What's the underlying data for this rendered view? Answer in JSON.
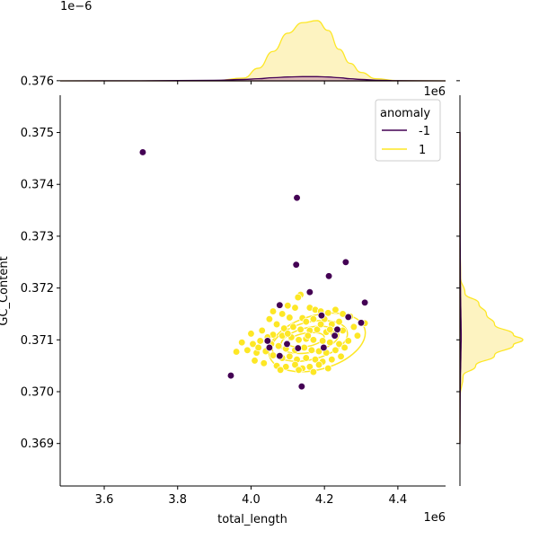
{
  "chart_data": {
    "type": "scatter",
    "xlabel": "total_length",
    "ylabel": "GC_Content",
    "x_offset_label": "1e6",
    "y_offset_label": "1e6",
    "top_marginal_offset_label": "1e−6",
    "xlim": [
      3.48,
      4.53
    ],
    "ylim": [
      0.36818,
      0.37572
    ],
    "x_ticks": [
      "3.6",
      "3.8",
      "4.0",
      "4.2",
      "4.4"
    ],
    "y_ticks": [
      "0.369",
      "0.370",
      "0.371",
      "0.372",
      "0.373",
      "0.374",
      "0.375",
      "0.376"
    ],
    "legend": {
      "title": "anomaly",
      "placement": "upper right"
    },
    "colors": {
      "anomaly_-1": "#440154",
      "normal_1": "#fde725",
      "fill_-1": "#dcb8b6",
      "fill_1": "#fdf3c1"
    },
    "series": [
      {
        "name": "-1",
        "points": [
          [
            3.705,
            0.37462
          ],
          [
            4.125,
            0.37374
          ],
          [
            4.123,
            0.37245
          ],
          [
            4.258,
            0.3725
          ],
          [
            4.212,
            0.37223
          ],
          [
            4.16,
            0.37192
          ],
          [
            4.31,
            0.37172
          ],
          [
            4.078,
            0.37167
          ],
          [
            4.192,
            0.37147
          ],
          [
            4.265,
            0.37144
          ],
          [
            4.3,
            0.37133
          ],
          [
            4.235,
            0.3712
          ],
          [
            4.045,
            0.37098
          ],
          [
            4.098,
            0.37092
          ],
          [
            4.198,
            0.37085
          ],
          [
            4.05,
            0.37085
          ],
          [
            4.128,
            0.37084
          ],
          [
            4.078,
            0.37069
          ],
          [
            3.945,
            0.37031
          ],
          [
            4.138,
            0.3701
          ],
          [
            4.228,
            0.37108
          ]
        ]
      },
      {
        "name": "1",
        "points": [
          [
            4.135,
            0.37187
          ],
          [
            4.128,
            0.37182
          ],
          [
            4.1,
            0.37166
          ],
          [
            4.12,
            0.37162
          ],
          [
            4.16,
            0.37162
          ],
          [
            4.175,
            0.37158
          ],
          [
            4.19,
            0.37155
          ],
          [
            4.21,
            0.37152
          ],
          [
            4.23,
            0.37158
          ],
          [
            4.25,
            0.3715
          ],
          [
            4.27,
            0.37145
          ],
          [
            4.06,
            0.37155
          ],
          [
            4.085,
            0.3715
          ],
          [
            4.105,
            0.37143
          ],
          [
            4.14,
            0.37142
          ],
          [
            4.15,
            0.37135
          ],
          [
            4.17,
            0.3714
          ],
          [
            4.2,
            0.3714
          ],
          [
            4.22,
            0.3713
          ],
          [
            4.24,
            0.37135
          ],
          [
            4.05,
            0.3714
          ],
          [
            4.07,
            0.3713
          ],
          [
            4.09,
            0.37122
          ],
          [
            4.115,
            0.37125
          ],
          [
            4.135,
            0.3712
          ],
          [
            4.16,
            0.37118
          ],
          [
            4.18,
            0.3712
          ],
          [
            4.205,
            0.37115
          ],
          [
            4.225,
            0.37112
          ],
          [
            4.25,
            0.37118
          ],
          [
            4.28,
            0.37125
          ],
          [
            4.0,
            0.37112
          ],
          [
            4.03,
            0.37118
          ],
          [
            4.06,
            0.3711
          ],
          [
            4.085,
            0.37108
          ],
          [
            4.11,
            0.37105
          ],
          [
            4.13,
            0.371
          ],
          [
            4.15,
            0.37102
          ],
          [
            4.17,
            0.371
          ],
          [
            4.195,
            0.37098
          ],
          [
            4.215,
            0.37095
          ],
          [
            4.24,
            0.37092
          ],
          [
            4.265,
            0.37098
          ],
          [
            4.29,
            0.37108
          ],
          [
            3.975,
            0.37095
          ],
          [
            4.005,
            0.37092
          ],
          [
            4.025,
            0.37098
          ],
          [
            4.055,
            0.37092
          ],
          [
            4.075,
            0.37088
          ],
          [
            4.095,
            0.37083
          ],
          [
            4.12,
            0.3708
          ],
          [
            4.145,
            0.37085
          ],
          [
            4.165,
            0.3708
          ],
          [
            4.185,
            0.37078
          ],
          [
            4.205,
            0.37075
          ],
          [
            4.23,
            0.3708
          ],
          [
            4.255,
            0.37085
          ],
          [
            3.99,
            0.3708
          ],
          [
            4.015,
            0.37075
          ],
          [
            4.04,
            0.37078
          ],
          [
            4.06,
            0.3707
          ],
          [
            4.085,
            0.37065
          ],
          [
            4.105,
            0.37068
          ],
          [
            4.125,
            0.37062
          ],
          [
            4.15,
            0.37065
          ],
          [
            4.175,
            0.37062
          ],
          [
            4.195,
            0.37058
          ],
          [
            4.22,
            0.37062
          ],
          [
            4.245,
            0.37068
          ],
          [
            3.96,
            0.37077
          ],
          [
            4.01,
            0.3706
          ],
          [
            4.035,
            0.37055
          ],
          [
            4.07,
            0.3705
          ],
          [
            4.095,
            0.37048
          ],
          [
            4.12,
            0.37052
          ],
          [
            4.14,
            0.37045
          ],
          [
            4.16,
            0.37048
          ],
          [
            4.185,
            0.37052
          ],
          [
            4.08,
            0.37042
          ],
          [
            4.13,
            0.37042
          ],
          [
            4.17,
            0.37038
          ],
          [
            4.21,
            0.37045
          ],
          [
            4.02,
            0.37085
          ],
          [
            4.045,
            0.37105
          ],
          [
            4.19,
            0.3713
          ],
          [
            4.215,
            0.3712
          ],
          [
            4.31,
            0.37132
          ],
          [
            4.155,
            0.37108
          ],
          [
            4.1,
            0.37112
          ]
        ]
      }
    ],
    "top_marginal": {
      "x": [
        3.48,
        3.7,
        3.9,
        3.98,
        4.02,
        4.06,
        4.1,
        4.14,
        4.18,
        4.21,
        4.24,
        4.27,
        4.3,
        4.34,
        4.4,
        4.53
      ],
      "density_1": [
        0,
        0,
        0.002,
        0.04,
        0.18,
        0.42,
        0.68,
        0.83,
        0.86,
        0.72,
        0.45,
        0.25,
        0.12,
        0.03,
        0.003,
        0
      ],
      "density_-1": [
        0,
        0.002,
        0.008,
        0.02,
        0.03,
        0.045,
        0.055,
        0.06,
        0.06,
        0.055,
        0.045,
        0.03,
        0.02,
        0.01,
        0.003,
        0
      ]
    },
    "right_marginal": {
      "y": [
        0.369,
        0.3699,
        0.3703,
        0.3705,
        0.3707,
        0.3709,
        0.371,
        0.3711,
        0.3713,
        0.3715,
        0.3717,
        0.3719,
        0.3722,
        0.373,
        0.375
      ],
      "density_1": [
        0,
        0.002,
        0.05,
        0.25,
        0.55,
        0.85,
        1.0,
        0.85,
        0.55,
        0.42,
        0.3,
        0.08,
        0.01,
        0,
        0
      ],
      "density_-1": [
        0.001,
        0.004,
        0.008,
        0.012,
        0.015,
        0.018,
        0.02,
        0.02,
        0.018,
        0.015,
        0.012,
        0.01,
        0.007,
        0.004,
        0.002
      ]
    },
    "contours": [
      {
        "cx": 4.18,
        "cy": 0.37095,
        "rx": 0.135,
        "ry": 0.00052,
        "rot": -16
      },
      {
        "cx": 4.16,
        "cy": 0.37098,
        "rx": 0.105,
        "ry": 0.00036,
        "rot": -14
      },
      {
        "cx": 4.16,
        "cy": 0.371,
        "rx": 0.08,
        "ry": 0.00024,
        "rot": -12
      },
      {
        "cx": 4.15,
        "cy": 0.371,
        "rx": 0.05,
        "ry": 0.00013,
        "rot": -10
      }
    ]
  }
}
